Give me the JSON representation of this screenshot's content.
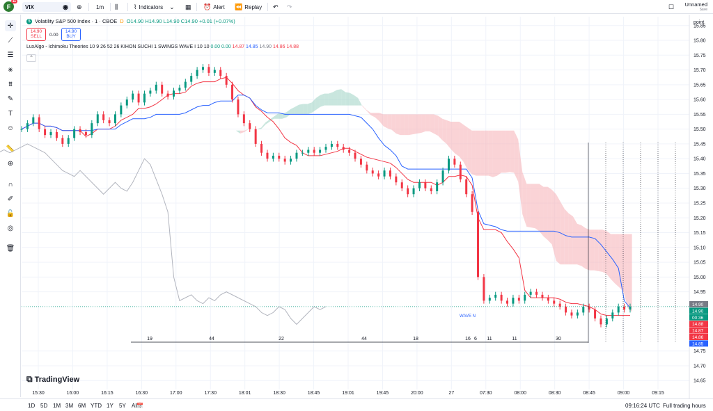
{
  "header": {
    "logo_letter": "F",
    "logo_badge": "11",
    "symbol": "VIX",
    "interval": "1m",
    "indicators_label": "Indicators",
    "alert_label": "Alert",
    "replay_label": "Replay",
    "layout_name": "Unnamed",
    "layout_sub": "Save"
  },
  "legend": {
    "title": "Volatility S&P 500 Index · 1 · CBOE",
    "delay": "D",
    "open": "O14.90",
    "high": "H14.90",
    "low": "L14.90",
    "close": "C14.90",
    "change": "+0.01 (+0.07%)",
    "sell_price": "14.90",
    "sell_label": "SELL",
    "spread": "0.00",
    "buy_price": "14.90",
    "buy_label": "BUY",
    "indicator_name": "LuxAlgo - Ichimoku Theories 10 9 26 52 26 KIHON SUCHI 1 SWINGS WAVE I 10 10",
    "indicator_values": [
      {
        "v": "0.00",
        "color": "#089981"
      },
      {
        "v": "0.00",
        "color": "#089981"
      },
      {
        "v": "14.87",
        "color": "#f23645"
      },
      {
        "v": "14.85",
        "color": "#2962ff"
      },
      {
        "v": "14.90",
        "color": "#787b86"
      },
      {
        "v": "14.86",
        "color": "#f23645"
      },
      {
        "v": "14.88",
        "color": "#f23645"
      }
    ]
  },
  "price_axis": {
    "unit": "point",
    "ticks": [
      "15.85",
      "15.80",
      "15.75",
      "15.70",
      "15.65",
      "15.60",
      "15.55",
      "15.50",
      "15.45",
      "15.40",
      "15.35",
      "15.30",
      "15.25",
      "15.20",
      "15.15",
      "15.10",
      "15.05",
      "15.00",
      "14.95",
      "14.75",
      "14.70",
      "14.65"
    ],
    "badges": [
      {
        "label": "14.90",
        "color": "#787b86"
      },
      {
        "label": "14.90",
        "color": "#089981"
      },
      {
        "label": "00:36",
        "color": "#089981"
      },
      {
        "label": "14.88",
        "color": "#f23645"
      },
      {
        "label": "14.87",
        "color": "#f23645"
      },
      {
        "label": "14.86",
        "color": "#f23645"
      },
      {
        "label": "14.85",
        "color": "#2962ff"
      }
    ]
  },
  "time_axis": {
    "ticks": [
      "15:30",
      "16:00",
      "16:15",
      "16:30",
      "17:00",
      "17:30",
      "18:01",
      "18:30",
      "18:45",
      "19:01",
      "19:45",
      "20:00",
      "27",
      "07:30",
      "08:00",
      "08:30",
      "08:45",
      "09:00",
      "09:15"
    ]
  },
  "kihon_suchi": [
    "19",
    "44",
    "22",
    "44",
    "18",
    "16",
    "6",
    "11",
    "11",
    "30"
  ],
  "wave_label": "WAVE N",
  "watermark": "TradingView",
  "bottom": {
    "ranges": [
      "1D",
      "5D",
      "1M",
      "3M",
      "6M",
      "YTD",
      "1Y",
      "5Y",
      "All"
    ],
    "clock": "09:16:24 UTC",
    "session": "Full trading hours"
  },
  "colors": {
    "up": "#089981",
    "down": "#f23645",
    "tenkan": "#f23645",
    "kijun": "#2962ff",
    "chikou": "#b2b5be",
    "cloud_bull": "#a5d6c8",
    "cloud_bear": "#f7b5bb"
  },
  "chart_data": {
    "type": "candlestick",
    "x_unit": "time (1m bars)",
    "ylim": [
      14.62,
      15.88
    ],
    "close": [
      15.5,
      15.52,
      15.54,
      15.5,
      15.48,
      15.49,
      15.47,
      15.45,
      15.47,
      15.5,
      15.49,
      15.48,
      15.52,
      15.55,
      15.53,
      15.52,
      15.55,
      15.58,
      15.6,
      15.62,
      15.59,
      15.62,
      15.63,
      15.65,
      15.62,
      15.61,
      15.63,
      15.64,
      15.66,
      15.68,
      15.7,
      15.71,
      15.69,
      15.7,
      15.68,
      15.65,
      15.6,
      15.55,
      15.52,
      15.5,
      15.45,
      15.42,
      15.4,
      15.41,
      15.4,
      15.39,
      15.4,
      15.42,
      15.42,
      15.43,
      15.42,
      15.43,
      15.44,
      15.45,
      15.44,
      15.43,
      15.42,
      15.4,
      15.38,
      15.36,
      15.35,
      15.34,
      15.36,
      15.34,
      15.32,
      15.3,
      15.28,
      15.3,
      15.32,
      15.3,
      15.29,
      15.32,
      15.36,
      15.4,
      15.38,
      15.33,
      15.28,
      15.22,
      15.0,
      14.92,
      14.93,
      14.94,
      14.92,
      14.91,
      14.93,
      14.92,
      14.94,
      14.95,
      14.94,
      14.93,
      14.92,
      14.91,
      14.9,
      14.88,
      14.87,
      14.88,
      14.9,
      14.89,
      14.86,
      14.84,
      14.86,
      14.88,
      14.9,
      14.89,
      14.9
    ]
  }
}
